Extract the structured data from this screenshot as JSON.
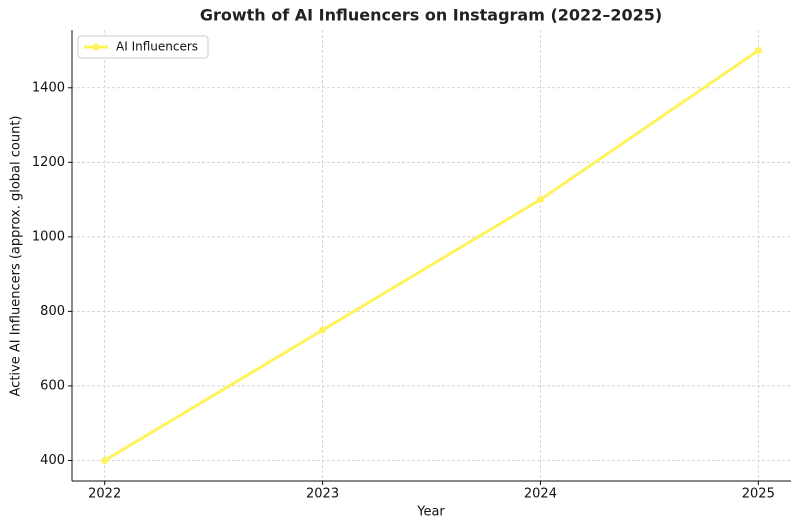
{
  "chart_data": {
    "type": "line",
    "title": "Growth of AI Influencers on Instagram (2022–2025)",
    "x_label": "Year",
    "y_label": "Active AI Influencers (approx. global count)",
    "x": [
      2022,
      2023,
      2024,
      2025
    ],
    "series": [
      {
        "name": "AI Influencers",
        "color": "#fff35c",
        "values": [
          400,
          750,
          1100,
          1500
        ]
      }
    ],
    "xlim": [
      2021.85,
      2025.15
    ],
    "xticks": [
      2022,
      2023,
      2024,
      2025
    ],
    "ylim": [
      345,
      1555
    ],
    "yticks": [
      400,
      600,
      800,
      1000,
      1200,
      1400
    ],
    "grid": true,
    "legend": "upper-left"
  }
}
